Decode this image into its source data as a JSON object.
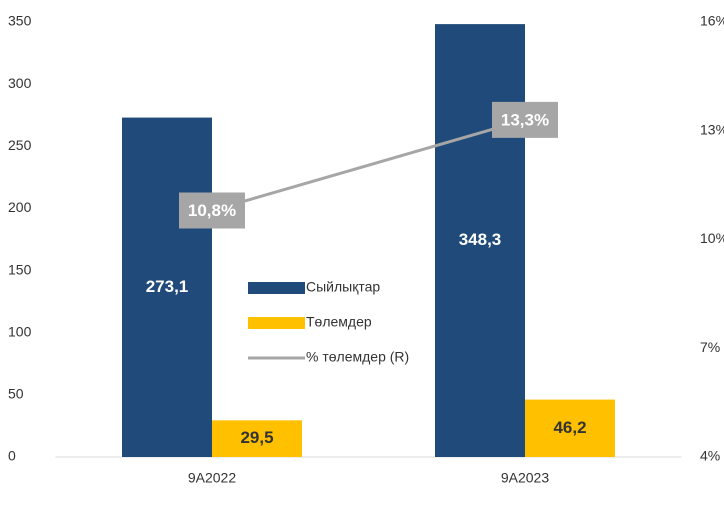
{
  "chart_data": {
    "type": "bar",
    "categories": [
      "9A2022",
      "9A2023"
    ],
    "series": [
      {
        "name": "Сыйлықтар",
        "color": "#1f4a7a",
        "values": [
          273.1,
          348.3
        ],
        "value_labels": [
          "273,1",
          "348,3"
        ]
      },
      {
        "name": "Төлемдер",
        "color": "#ffc000",
        "values": [
          29.5,
          46.2
        ],
        "value_labels": [
          "29,5",
          "46,2"
        ]
      },
      {
        "name": "% төлемдер (R)",
        "color": "#a6a6a6",
        "axis": "y2",
        "values": [
          10.8,
          13.3
        ],
        "value_labels": [
          "10,8%",
          "13,3%"
        ]
      }
    ],
    "ylim": [
      0,
      350
    ],
    "yticks": [
      0,
      50,
      100,
      150,
      200,
      250,
      300,
      350
    ],
    "y2lim": [
      4,
      16
    ],
    "y2ticks": [
      {
        "value": 4,
        "label": "4%"
      },
      {
        "value": 7,
        "label": "7%"
      },
      {
        "value": 10,
        "label": "10%"
      },
      {
        "value": 13,
        "label": "13%"
      },
      {
        "value": 16,
        "label": "16%"
      }
    ]
  }
}
